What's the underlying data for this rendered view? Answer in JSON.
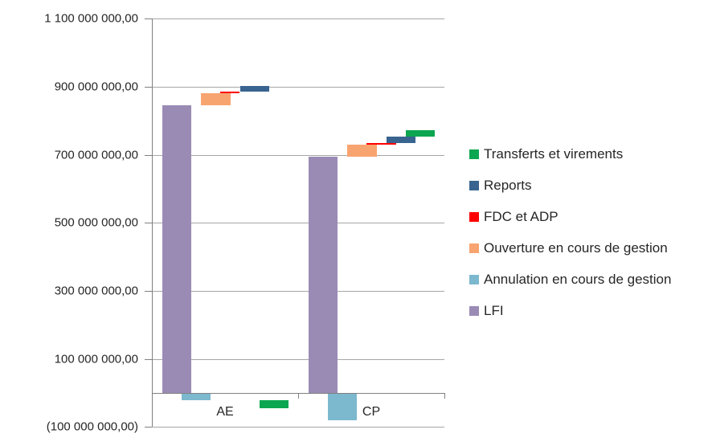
{
  "chart_data": {
    "type": "bar",
    "variant": "stacked-waterfall",
    "title": "",
    "xlabel": "",
    "ylabel": "",
    "grid": true,
    "legend_position": "right",
    "categories": [
      "AE",
      "CP"
    ],
    "series": [
      {
        "name": "LFI",
        "color": "#9a8bb5",
        "values": [
          845000000,
          694000000
        ]
      },
      {
        "name": "Annulation en cours de gestion",
        "color": "#7cb8ce",
        "values": [
          -20000000,
          -80000000
        ]
      },
      {
        "name": "Ouverture en cours de gestion",
        "color": "#f8a470",
        "values": [
          36000000,
          36000000
        ]
      },
      {
        "name": "FDC et ADP",
        "color": "#fe0000",
        "values": [
          4000000,
          4000000
        ]
      },
      {
        "name": "Reports",
        "color": "#396490",
        "values": [
          18000000,
          20000000
        ]
      },
      {
        "name": "Transferts et virements",
        "color": "#0ca650",
        "values": [
          -24000000,
          17000000
        ]
      }
    ],
    "y_axis": {
      "min": -100000000,
      "max": 1100000000,
      "step": 200000000,
      "ticks": [
        {
          "value": 1100000000,
          "label": "1 100 000 000,00"
        },
        {
          "value": 900000000,
          "label": "900 000 000,00"
        },
        {
          "value": 700000000,
          "label": "700 000 000,00"
        },
        {
          "value": 500000000,
          "label": "500 000 000,00"
        },
        {
          "value": 300000000,
          "label": "300 000 000,00"
        },
        {
          "value": 100000000,
          "label": "100 000 000,00"
        },
        {
          "value": -100000000,
          "label": "(100 000 000,00)"
        }
      ]
    },
    "legend": {
      "items": [
        {
          "label": "Transferts et virements",
          "color": "#0ca650"
        },
        {
          "label": "Reports",
          "color": "#396490"
        },
        {
          "label": "FDC et ADP",
          "color": "#fe0000"
        },
        {
          "label": "Ouverture en cours de gestion",
          "color": "#f8a470"
        },
        {
          "label": "Annulation en cours de gestion",
          "color": "#7cb8ce"
        },
        {
          "label": "LFI",
          "color": "#9a8bb5"
        }
      ]
    },
    "colors": {
      "gridline": "#a6a6a6",
      "axis": "#808080",
      "text": "#262626",
      "background": "#ffffff"
    }
  }
}
